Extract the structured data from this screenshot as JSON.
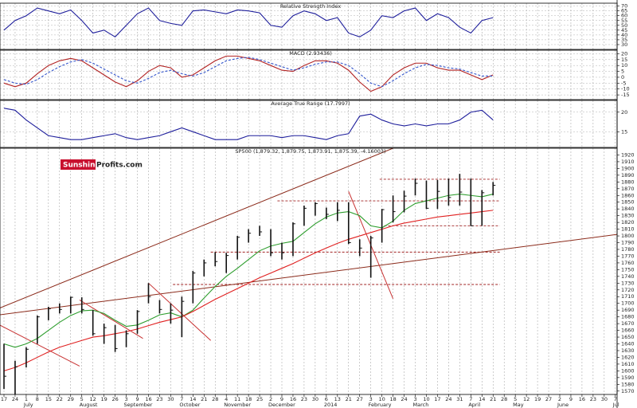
{
  "logo": {
    "part1": "Sunshine",
    "part2": "Profits.com"
  },
  "x_axis": {
    "ticks": [
      "17",
      "24",
      "1",
      "8",
      "15",
      "22",
      "29",
      "5",
      "12",
      "19",
      "26",
      "3",
      "9",
      "16",
      "23",
      "30",
      "7",
      "14",
      "21",
      "28",
      "4",
      "11",
      "18",
      "25",
      "2",
      "9",
      "16",
      "23",
      "30",
      "6",
      "13",
      "21",
      "27",
      "3",
      "10",
      "18",
      "24",
      "3",
      "10",
      "17",
      "24",
      "31",
      "7",
      "14",
      "21",
      "28",
      "5",
      "12",
      "19",
      "27",
      "2",
      "9",
      "16",
      "23",
      "30",
      "7"
    ],
    "months": [
      {
        "label": "July",
        "at": 2
      },
      {
        "label": "August",
        "at": 7
      },
      {
        "label": "September",
        "at": 11
      },
      {
        "label": "October",
        "at": 16
      },
      {
        "label": "November",
        "at": 20
      },
      {
        "label": "December",
        "at": 24
      },
      {
        "label": "2014",
        "at": 29
      },
      {
        "label": "February",
        "at": 33
      },
      {
        "label": "March",
        "at": 37
      },
      {
        "label": "April",
        "at": 42
      },
      {
        "label": "May",
        "at": 46
      },
      {
        "label": "June",
        "at": 50
      },
      {
        "label": "Jul",
        "at": 55
      }
    ]
  },
  "chart_data": [
    {
      "type": "line",
      "title": "Relative Strength Index",
      "ylim": [
        25,
        73
      ],
      "yticks": [
        30,
        35,
        40,
        45,
        50,
        55,
        60,
        65,
        70
      ],
      "grid": true,
      "series": [
        {
          "color": "#1f1f9c",
          "values": [
            45,
            55,
            60,
            68,
            65,
            62,
            66,
            55,
            42,
            45,
            38,
            50,
            62,
            68,
            55,
            52,
            50,
            65,
            66,
            64,
            62,
            66,
            65,
            63,
            50,
            48,
            60,
            65,
            62,
            55,
            58,
            42,
            38,
            45,
            60,
            58,
            65,
            68,
            55,
            62,
            58,
            48,
            42,
            55,
            58
          ]
        }
      ]
    },
    {
      "type": "line",
      "title": "MACD (2.93436)",
      "ylim": [
        -19,
        23
      ],
      "yticks": [
        -15,
        -10,
        -5,
        0,
        5,
        10,
        15,
        20
      ],
      "grid": true,
      "series": [
        {
          "color": "#b22222",
          "values": [
            -5,
            -8,
            -5,
            3,
            10,
            14,
            16,
            14,
            8,
            2,
            -4,
            -8,
            -3,
            5,
            10,
            8,
            0,
            2,
            8,
            14,
            18,
            18,
            16,
            14,
            10,
            6,
            5,
            10,
            14,
            14,
            12,
            6,
            -4,
            -12,
            -8,
            2,
            8,
            12,
            12,
            8,
            6,
            6,
            2,
            -2,
            2
          ]
        },
        {
          "color": "#3355cc",
          "dash": true,
          "values": [
            -2,
            -5,
            -6,
            -2,
            4,
            9,
            13,
            15,
            12,
            7,
            2,
            -3,
            -5,
            -1,
            4,
            6,
            3,
            1,
            4,
            9,
            14,
            16,
            17,
            15,
            12,
            9,
            6,
            8,
            11,
            13,
            13,
            10,
            3,
            -5,
            -8,
            -3,
            3,
            8,
            11,
            10,
            8,
            7,
            4,
            1,
            1
          ]
        }
      ]
    },
    {
      "type": "line",
      "title": "Average True Range (17.7997)",
      "ylim": [
        11,
        23
      ],
      "yticks": [
        15,
        20
      ],
      "grid": true,
      "series": [
        {
          "color": "#1f1f9c",
          "values": [
            21,
            20.5,
            18,
            16,
            14,
            13.5,
            13,
            13,
            13.5,
            14,
            14.5,
            13.5,
            13,
            13.5,
            14,
            15,
            16,
            15,
            14,
            13,
            13,
            13,
            14,
            14,
            14,
            13.5,
            14,
            14,
            13.5,
            13,
            14,
            14.5,
            19,
            19.5,
            18,
            17,
            16.5,
            17,
            16.5,
            17,
            17,
            18,
            20,
            20.5,
            18
          ]
        }
      ]
    },
    {
      "type": "hlc",
      "title": "SP500 (1,879.32, 1,879.75, 1,873.91, 1,875.39, -4.16003)",
      "ylim": [
        1565,
        1930
      ],
      "yticks": [
        1570,
        1580,
        1590,
        1600,
        1610,
        1620,
        1630,
        1640,
        1650,
        1660,
        1670,
        1680,
        1690,
        1700,
        1710,
        1720,
        1730,
        1740,
        1750,
        1760,
        1770,
        1780,
        1790,
        1800,
        1810,
        1820,
        1830,
        1840,
        1850,
        1860,
        1870,
        1880,
        1890,
        1900,
        1910,
        1920
      ],
      "grid": false,
      "color": "#111111",
      "high": [
        1640,
        1615,
        1635,
        1682,
        1695,
        1700,
        1710,
        1709,
        1690,
        1670,
        1668,
        1660,
        1690,
        1730,
        1705,
        1700,
        1710,
        1748,
        1765,
        1776,
        1775,
        1800,
        1810,
        1815,
        1810,
        1790,
        1820,
        1845,
        1850,
        1842,
        1850,
        1850,
        1795,
        1800,
        1840,
        1860,
        1867,
        1885,
        1882,
        1883,
        1885,
        1892,
        1885,
        1868,
        1880
      ],
      "low": [
        1573,
        1560,
        1605,
        1640,
        1675,
        1685,
        1685,
        1685,
        1652,
        1640,
        1628,
        1635,
        1655,
        1700,
        1685,
        1670,
        1650,
        1700,
        1740,
        1755,
        1745,
        1765,
        1790,
        1800,
        1770,
        1765,
        1770,
        1815,
        1830,
        1825,
        1822,
        1788,
        1770,
        1738,
        1790,
        1820,
        1835,
        1860,
        1840,
        1840,
        1845,
        1845,
        1815,
        1815,
        1860
      ],
      "close": [
        1592,
        1606,
        1632,
        1680,
        1692,
        1691,
        1709,
        1691,
        1655,
        1664,
        1633,
        1655,
        1688,
        1710,
        1691,
        1690,
        1703,
        1745,
        1760,
        1762,
        1771,
        1798,
        1804,
        1806,
        1775,
        1775,
        1818,
        1841,
        1848,
        1832,
        1838,
        1790,
        1782,
        1797,
        1839,
        1836,
        1859,
        1878,
        1841,
        1866,
        1857,
        1865,
        1815,
        1864,
        1875
      ],
      "series": [
        {
          "color": "#2e9e2e",
          "values": [
            1640,
            1635,
            1640,
            1648,
            1660,
            1672,
            1682,
            1689,
            1690,
            1685,
            1675,
            1666,
            1668,
            1675,
            1683,
            1686,
            1680,
            1690,
            1708,
            1725,
            1740,
            1752,
            1765,
            1778,
            1785,
            1789,
            1792,
            1805,
            1818,
            1828,
            1834,
            1836,
            1830,
            1815,
            1812,
            1822,
            1838,
            1848,
            1852,
            1856,
            1860,
            1862,
            1860,
            1858,
            1862
          ]
        },
        {
          "color": "#e02020",
          "values": [
            1600,
            1605,
            1612,
            1620,
            1628,
            1635,
            1640,
            1645,
            1650,
            1652,
            1655,
            1658,
            1662,
            1667,
            1672,
            1676,
            1680,
            1688,
            1697,
            1706,
            1714,
            1722,
            1730,
            1738,
            1745,
            1752,
            1759,
            1767,
            1775,
            1782,
            1789,
            1795,
            1800,
            1805,
            1810,
            1815,
            1819,
            1822,
            1825,
            1828,
            1830,
            1832,
            1834,
            1836,
            1838
          ]
        }
      ],
      "trendlines": [
        {
          "from": [
            -0.4,
            1693
          ],
          "to": [
            35,
            1930
          ],
          "color": "#8b2a1a"
        },
        {
          "from": [
            -0.4,
            1683
          ],
          "to": [
            55.5,
            1803
          ],
          "color": "#8b2a1a"
        },
        {
          "from": [
            -0.4,
            1668
          ],
          "to": [
            6.8,
            1607
          ],
          "color": "#c83232"
        },
        {
          "from": [
            6.8,
            1705
          ],
          "to": [
            12.5,
            1648
          ],
          "color": "#c83232"
        },
        {
          "from": [
            13,
            1730
          ],
          "to": [
            18.6,
            1645
          ],
          "color": "#c83232"
        },
        {
          "from": [
            31,
            1866
          ],
          "to": [
            35,
            1707
          ],
          "color": "#c83232"
        }
      ],
      "levels": [
        {
          "value": 1884,
          "from": 33.8,
          "to": 44.6,
          "color": "#a02020"
        },
        {
          "value": 1852,
          "from": 24.6,
          "to": 44.6,
          "color": "#a02020"
        },
        {
          "value": 1815,
          "from": 34.2,
          "to": 44.6,
          "color": "#a02020"
        },
        {
          "value": 1776,
          "from": 18.6,
          "to": 44.6,
          "color": "#a02020"
        },
        {
          "value": 1728,
          "from": 15.2,
          "to": 44.6,
          "color": "#a02020"
        }
      ]
    }
  ]
}
